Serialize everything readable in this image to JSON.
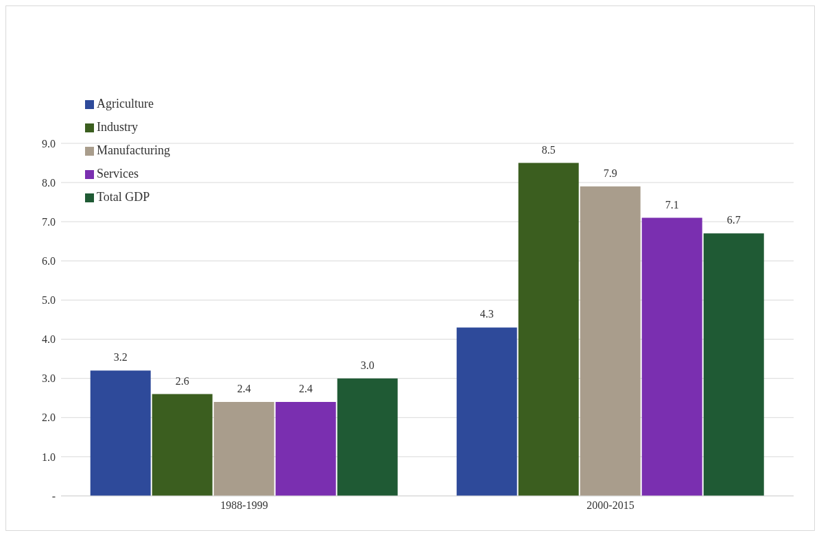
{
  "chart_data": {
    "type": "bar",
    "categories": [
      "1988-1999",
      "2000-2015"
    ],
    "series": [
      {
        "name": "Agriculture",
        "color": "#2e4a9a",
        "values": [
          3.2,
          4.3
        ],
        "value_labels": [
          "3.2",
          "4.3"
        ]
      },
      {
        "name": "Industry",
        "color": "#3b5e1f",
        "values": [
          2.6,
          8.5
        ],
        "value_labels": [
          "2.6",
          "8.5"
        ]
      },
      {
        "name": "Manufacturing",
        "color": "#a99d8c",
        "values": [
          2.4,
          7.9
        ],
        "value_labels": [
          "2.4",
          "7.9"
        ]
      },
      {
        "name": "Services",
        "color": "#7a2fb0",
        "values": [
          2.4,
          7.1
        ],
        "value_labels": [
          "2.4",
          "7.1"
        ]
      },
      {
        "name": "Total GDP",
        "color": "#1f5a34",
        "values": [
          3.0,
          6.7
        ],
        "value_labels": [
          "3.0",
          "6.7"
        ]
      }
    ],
    "ylim": [
      0,
      9
    ],
    "yticks": [
      {
        "value": 0,
        "label": "-"
      },
      {
        "value": 1,
        "label": "1.0"
      },
      {
        "value": 2,
        "label": "2.0"
      },
      {
        "value": 3,
        "label": "3.0"
      },
      {
        "value": 4,
        "label": "4.0"
      },
      {
        "value": 5,
        "label": "5.0"
      },
      {
        "value": 6,
        "label": "6.0"
      },
      {
        "value": 7,
        "label": "7.0"
      },
      {
        "value": 8,
        "label": "8.0"
      },
      {
        "value": 9,
        "label": "9.0"
      }
    ],
    "grid": "y",
    "legend": "top left"
  }
}
